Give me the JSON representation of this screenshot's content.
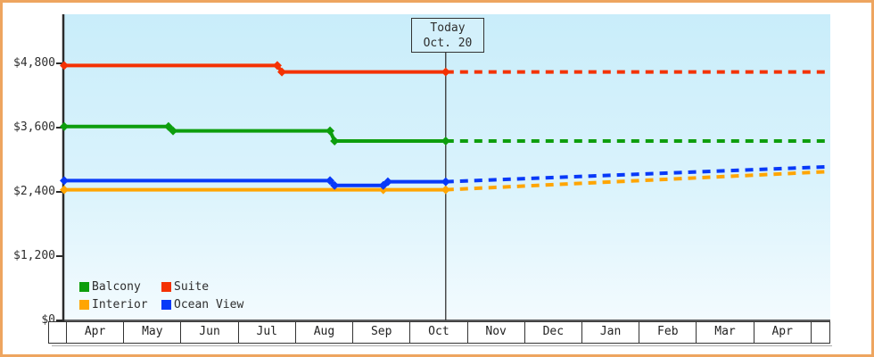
{
  "frame": {
    "border_color": "#eea55f",
    "background": "#ffffff"
  },
  "legend": {
    "items": [
      "Balcony",
      "Suite",
      "Interior",
      "Ocean View"
    ]
  },
  "chart_data": {
    "type": "line",
    "title": "",
    "x_axis": {
      "unit": "month",
      "labels": [
        "Apr",
        "May",
        "Jun",
        "Jul",
        "Aug",
        "Sep",
        "Oct",
        "Nov",
        "Dec",
        "Jan",
        "Feb",
        "Mar",
        "Apr"
      ],
      "range_months": 13.37
    },
    "y_axis": {
      "tick_values": [
        0,
        1200,
        2400,
        3600,
        4800
      ],
      "tick_labels": [
        "$0",
        "$1,200",
        "$2,400",
        "$3,600",
        "$4,800"
      ],
      "ylim": [
        0,
        5700
      ],
      "grid": false
    },
    "today": {
      "label": "Today",
      "date": "Oct. 20",
      "month_offset": 6.66
    },
    "legend_position": "bottom-left-inside",
    "series": [
      {
        "name": "Interior",
        "color": "#ffa502",
        "history": [
          [
            0,
            2440
          ],
          [
            5.57,
            2440
          ],
          [
            6.66,
            2440
          ]
        ],
        "forecast": [
          [
            6.66,
            2440
          ],
          [
            13.37,
            2780
          ]
        ]
      },
      {
        "name": "Ocean View",
        "color": "#0839f8",
        "history": [
          [
            0,
            2610
          ],
          [
            4.64,
            2610
          ],
          [
            4.72,
            2520
          ],
          [
            5.57,
            2520
          ],
          [
            5.65,
            2590
          ],
          [
            6.66,
            2590
          ]
        ],
        "forecast": [
          [
            6.66,
            2590
          ],
          [
            13.37,
            2870
          ]
        ]
      },
      {
        "name": "Balcony",
        "color": "#0d9e0d",
        "history": [
          [
            0,
            3620
          ],
          [
            1.82,
            3620
          ],
          [
            1.9,
            3540
          ],
          [
            4.64,
            3540
          ],
          [
            4.72,
            3350
          ],
          [
            6.66,
            3350
          ]
        ],
        "forecast": [
          [
            6.66,
            3350
          ],
          [
            13.37,
            3350
          ]
        ]
      },
      {
        "name": "Suite",
        "color": "#f43204",
        "history": [
          [
            0,
            4760
          ],
          [
            3.72,
            4760
          ],
          [
            3.8,
            4640
          ],
          [
            6.66,
            4640
          ]
        ],
        "forecast": [
          [
            6.66,
            4640
          ],
          [
            13.37,
            4640
          ]
        ]
      }
    ]
  }
}
